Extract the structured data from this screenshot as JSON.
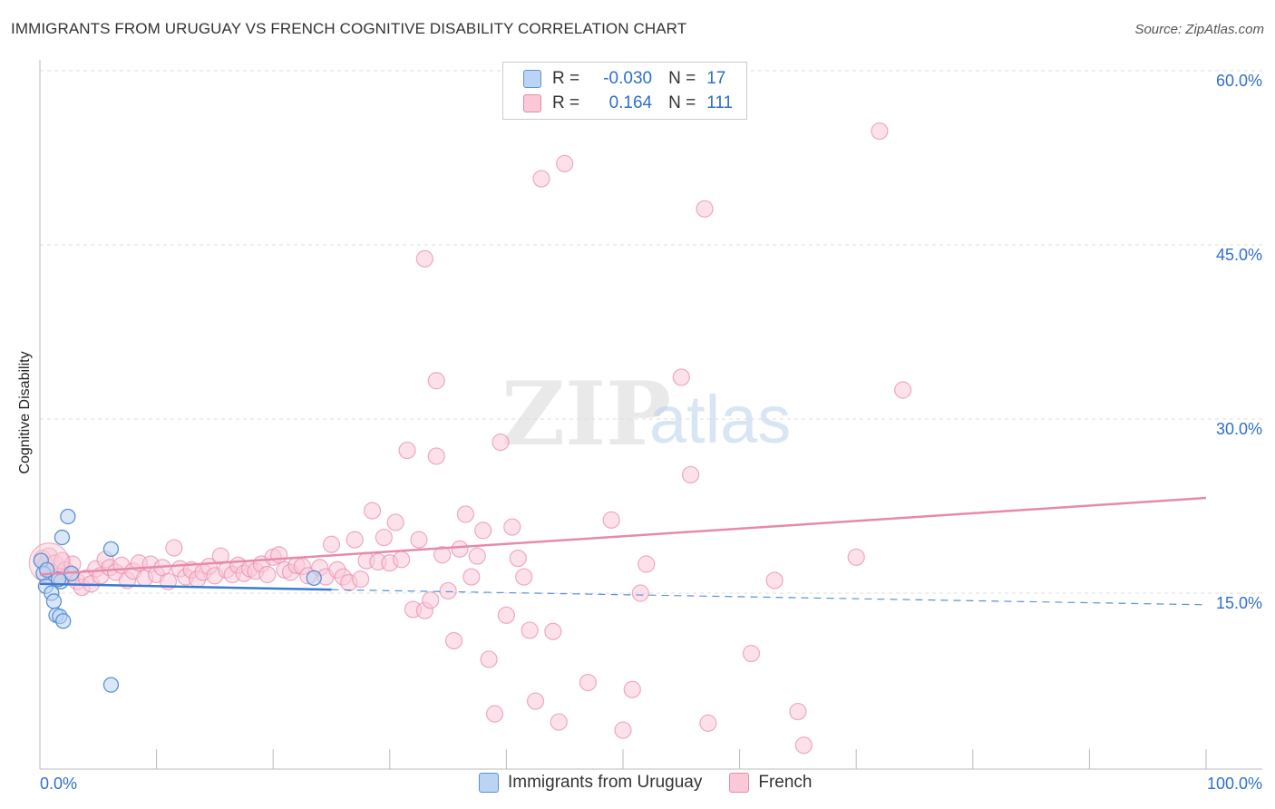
{
  "title": "IMMIGRANTS FROM URUGUAY VS FRENCH COGNITIVE DISABILITY CORRELATION CHART",
  "source": "Source: ZipAtlas.com",
  "watermark": {
    "zip": "ZIP",
    "atlas": "atlas"
  },
  "legend_top": {
    "r_label": "R =",
    "n_label": "N =",
    "rows": [
      {
        "r": "-0.030",
        "n": "17"
      },
      {
        "r": "0.164",
        "n": "111"
      }
    ]
  },
  "chart_data": {
    "type": "scatter",
    "title": "IMMIGRANTS FROM URUGUAY VS FRENCH COGNITIVE DISABILITY CORRELATION CHART",
    "xlabel": "",
    "ylabel": "Cognitive Disability",
    "xlim": [
      0,
      100
    ],
    "ylim": [
      0,
      65
    ],
    "x_tick_labels": [
      "0.0%",
      "100.0%"
    ],
    "y_ticks": [
      15,
      30,
      45,
      60
    ],
    "y_tick_labels": [
      "15.0%",
      "30.0%",
      "45.0%",
      "60.0%"
    ],
    "grid": true,
    "legend_position": "bottom-center",
    "colors": {
      "uruguay": "#5a92d6",
      "french": "#e78aa8",
      "uruguay_fill": "#bcd4f3",
      "french_fill": "#f9c9d8",
      "axis_text": "#2f6fc9"
    },
    "series": [
      {
        "name": "Immigrants from Uruguay",
        "r": -0.03,
        "n": 17,
        "trend": {
          "x": [
            0,
            25
          ],
          "y": [
            15.8,
            15.3
          ],
          "dashed_extension": {
            "x": [
              25,
              100
            ],
            "y": [
              15.3,
              14.0
            ]
          }
        },
        "points": [
          [
            0.1,
            17.8
          ],
          [
            0.3,
            16.7
          ],
          [
            0.5,
            15.6
          ],
          [
            1.0,
            15.0
          ],
          [
            1.2,
            14.3
          ],
          [
            1.4,
            13.1
          ],
          [
            1.7,
            13.0
          ],
          [
            1.8,
            16.0
          ],
          [
            1.9,
            19.8
          ],
          [
            2.0,
            12.6
          ],
          [
            2.4,
            21.6
          ],
          [
            2.7,
            16.7
          ],
          [
            6.1,
            18.8
          ],
          [
            6.1,
            7.1
          ],
          [
            23.5,
            16.3
          ],
          [
            0.6,
            17.0
          ],
          [
            1.6,
            16.2
          ]
        ]
      },
      {
        "name": "French",
        "r": 0.164,
        "n": 111,
        "trend": {
          "x": [
            0,
            100
          ],
          "y": [
            16.6,
            23.2
          ]
        },
        "points": [
          [
            0.2,
            18.0
          ],
          [
            0.5,
            17.4
          ],
          [
            0.8,
            18.2
          ],
          [
            1.0,
            16.8
          ],
          [
            1.3,
            17.6
          ],
          [
            1.6,
            16.4
          ],
          [
            1.9,
            17.8
          ],
          [
            2.2,
            17.0
          ],
          [
            2.5,
            16.6
          ],
          [
            2.8,
            17.5
          ],
          [
            3.2,
            16.0
          ],
          [
            3.6,
            15.5
          ],
          [
            4.0,
            16.3
          ],
          [
            4.4,
            15.8
          ],
          [
            4.8,
            17.1
          ],
          [
            5.2,
            16.5
          ],
          [
            5.6,
            17.9
          ],
          [
            6.0,
            17.2
          ],
          [
            6.5,
            16.8
          ],
          [
            7.0,
            17.4
          ],
          [
            7.5,
            16.1
          ],
          [
            8.0,
            16.9
          ],
          [
            8.5,
            17.6
          ],
          [
            9.0,
            16.3
          ],
          [
            9.5,
            17.5
          ],
          [
            10.0,
            16.6
          ],
          [
            10.5,
            17.2
          ],
          [
            11.0,
            16.0
          ],
          [
            11.5,
            18.9
          ],
          [
            12.0,
            17.1
          ],
          [
            12.5,
            16.4
          ],
          [
            13.0,
            17.0
          ],
          [
            13.5,
            16.2
          ],
          [
            14.0,
            16.8
          ],
          [
            14.5,
            17.3
          ],
          [
            15.0,
            16.5
          ],
          [
            15.5,
            18.2
          ],
          [
            16.0,
            17.0
          ],
          [
            16.5,
            16.6
          ],
          [
            17.0,
            17.4
          ],
          [
            17.5,
            16.7
          ],
          [
            18.0,
            17.1
          ],
          [
            18.5,
            16.9
          ],
          [
            19.0,
            17.5
          ],
          [
            19.5,
            16.6
          ],
          [
            20.0,
            18.1
          ],
          [
            20.5,
            18.3
          ],
          [
            21.0,
            17.0
          ],
          [
            21.5,
            16.8
          ],
          [
            22.0,
            17.4
          ],
          [
            22.5,
            17.3
          ],
          [
            23.0,
            16.5
          ],
          [
            24.0,
            17.2
          ],
          [
            24.5,
            16.4
          ],
          [
            25.0,
            19.2
          ],
          [
            25.5,
            17.0
          ],
          [
            26.0,
            16.4
          ],
          [
            26.5,
            15.9
          ],
          [
            27.0,
            19.6
          ],
          [
            27.5,
            16.2
          ],
          [
            28.0,
            17.8
          ],
          [
            28.5,
            22.1
          ],
          [
            29.0,
            17.7
          ],
          [
            29.5,
            19.8
          ],
          [
            30.0,
            17.6
          ],
          [
            30.5,
            21.1
          ],
          [
            31.0,
            17.9
          ],
          [
            31.5,
            27.3
          ],
          [
            32.0,
            13.6
          ],
          [
            32.5,
            19.6
          ],
          [
            33.0,
            13.5
          ],
          [
            33.5,
            14.4
          ],
          [
            34.0,
            26.8
          ],
          [
            34.5,
            18.3
          ],
          [
            35.0,
            15.2
          ],
          [
            35.5,
            10.9
          ],
          [
            36.0,
            18.8
          ],
          [
            36.5,
            21.8
          ],
          [
            37.0,
            16.4
          ],
          [
            37.5,
            18.2
          ],
          [
            38.0,
            20.4
          ],
          [
            38.5,
            9.3
          ],
          [
            39.0,
            4.6
          ],
          [
            39.5,
            28.0
          ],
          [
            40.0,
            13.1
          ],
          [
            40.5,
            20.7
          ],
          [
            41.0,
            18.0
          ],
          [
            41.5,
            16.4
          ],
          [
            42.0,
            11.8
          ],
          [
            42.5,
            5.7
          ],
          [
            43.0,
            50.7
          ],
          [
            44.0,
            11.7
          ],
          [
            44.5,
            3.9
          ],
          [
            45.0,
            52.0
          ],
          [
            47.0,
            7.3
          ],
          [
            49.0,
            21.3
          ],
          [
            50.0,
            3.2
          ],
          [
            50.8,
            6.7
          ],
          [
            51.5,
            15.0
          ],
          [
            52.0,
            17.5
          ],
          [
            55.0,
            33.6
          ],
          [
            55.8,
            25.2
          ],
          [
            57.0,
            48.1
          ],
          [
            57.3,
            3.8
          ],
          [
            61.0,
            9.8
          ],
          [
            63.0,
            16.1
          ],
          [
            65.0,
            4.8
          ],
          [
            65.5,
            1.9
          ],
          [
            70.0,
            18.1
          ],
          [
            72.0,
            54.8
          ],
          [
            74.0,
            32.5
          ],
          [
            33.0,
            43.8
          ],
          [
            34.0,
            33.3
          ]
        ]
      }
    ]
  }
}
